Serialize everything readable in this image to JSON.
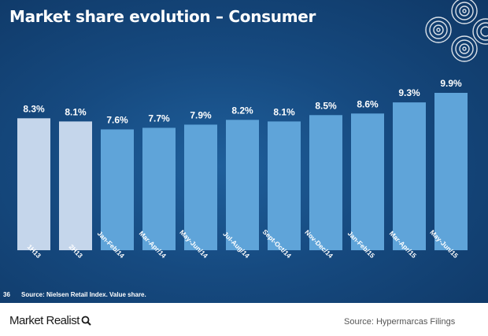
{
  "title": "Market share evolution – Consumer",
  "slide_number": "36",
  "source_note": "Source: Nielsen Retail Index. Value share.",
  "footer": {
    "brand": "Market Realist",
    "source_credit": "Source: Hypermarcas Filings"
  },
  "colors": {
    "background": "#164a80",
    "bar_light": "#c5d6eb",
    "bar_blue": "#5fa4d9",
    "label": "#ffffff"
  },
  "chart_data": {
    "type": "bar",
    "title": "Market share evolution – Consumer",
    "categories": [
      "1H13",
      "2H13",
      "Jan-Feb/14",
      "Mar-Apr/14",
      "May-Jun/14",
      "Jul-Aug/14",
      "Sept-Oct/14",
      "Nov-Dec/14",
      "Jan-Feb/15",
      "Mar-Apr/15",
      "May-Jun/15"
    ],
    "values": [
      8.3,
      8.1,
      7.6,
      7.7,
      7.9,
      8.2,
      8.1,
      8.5,
      8.6,
      9.3,
      9.9
    ],
    "value_labels": [
      "8.3%",
      "8.1%",
      "7.6%",
      "7.7%",
      "7.9%",
      "8.2%",
      "8.1%",
      "8.5%",
      "8.6%",
      "9.3%",
      "9.9%"
    ],
    "bar_styles": [
      "light",
      "light",
      "blue",
      "blue",
      "blue",
      "blue",
      "blue",
      "blue",
      "blue",
      "blue",
      "blue"
    ],
    "xlabel": "",
    "ylabel": "",
    "y_axis_visible": false,
    "grid": false
  }
}
